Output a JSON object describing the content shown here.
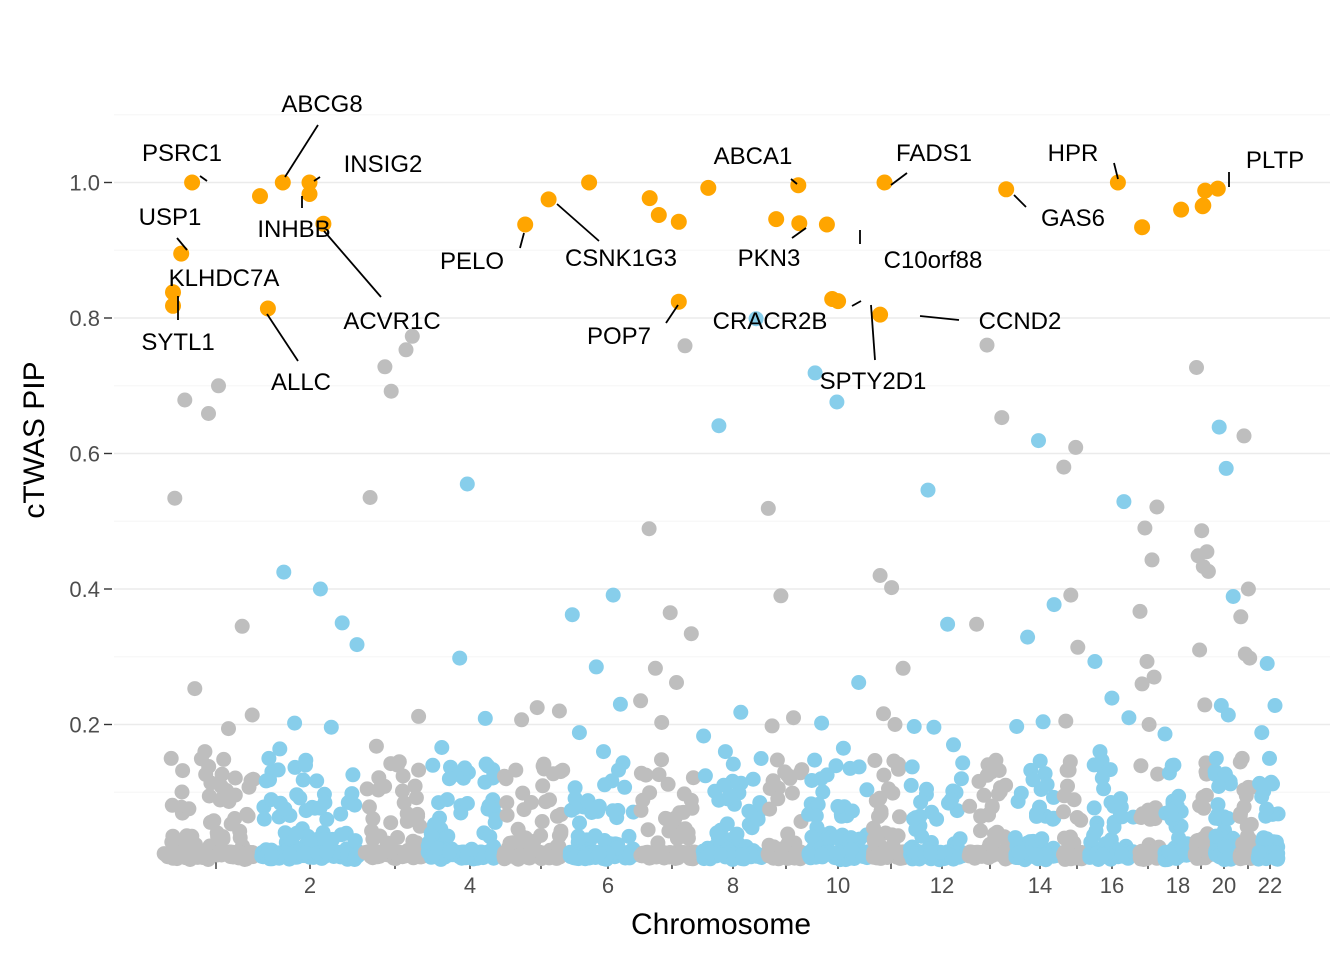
{
  "chart_data": {
    "type": "scatter",
    "title": "",
    "xlabel": "Chromosome",
    "ylabel": "cTWAS PIP",
    "ylim": [
      0,
      1.1
    ],
    "y_ticks": [
      0.2,
      0.4,
      0.6,
      0.8,
      1.0
    ],
    "y_tick_labels": [
      "0.2",
      "0.4",
      "0.6",
      "0.8",
      "1.0"
    ],
    "x_tick_labels": [
      "2",
      "4",
      "6",
      "8",
      "10",
      "12",
      "14",
      "16",
      "18",
      "20",
      "22"
    ],
    "grid": true,
    "legend": "none",
    "colors": {
      "odd_chromosome": "#bebebe",
      "even_chromosome": "#87ceeb",
      "highlighted": "#ffa500",
      "gridline": "#ebebeb",
      "label_line": "#000000"
    },
    "chromosomes": [
      {
        "chr": 1,
        "label": "",
        "lead": [
          0.534,
          0.659,
          0.345,
          0.679,
          0.7,
          0.214,
          0.253,
          0.194,
          0.15,
          0.16
        ]
      },
      {
        "chr": 2,
        "label": "2",
        "lead": [
          0.425,
          0.4,
          0.318,
          0.202,
          0.196,
          0.15,
          0.14,
          0.35,
          0.164
        ]
      },
      {
        "chr": 3,
        "label": "",
        "lead": [
          0.728,
          0.753,
          0.535,
          0.692,
          0.773,
          0.168,
          0.14,
          0.212
        ]
      },
      {
        "chr": 4,
        "label": "4",
        "lead": [
          0.298,
          0.209,
          0.166,
          0.555,
          0.121,
          0.12
        ]
      },
      {
        "chr": 5,
        "label": "",
        "lead": [
          0.225,
          0.22,
          0.207,
          0.14,
          0.12
        ]
      },
      {
        "chr": 6,
        "label": "6",
        "lead": [
          0.391,
          0.362,
          0.285,
          0.23,
          0.188,
          0.16
        ]
      },
      {
        "chr": 7,
        "label": "",
        "lead": [
          0.759,
          0.489,
          0.365,
          0.334,
          0.283,
          0.262,
          0.235,
          0.203
        ]
      },
      {
        "chr": 8,
        "label": "8",
        "lead": [
          0.799,
          0.641,
          0.218,
          0.183,
          0.16
        ]
      },
      {
        "chr": 9,
        "label": "",
        "lead": [
          0.519,
          0.39,
          0.21,
          0.198,
          0.13
        ]
      },
      {
        "chr": 10,
        "label": "10",
        "lead": [
          0.719,
          0.676,
          0.262,
          0.202,
          0.165
        ]
      },
      {
        "chr": 11,
        "label": "",
        "lead": [
          0.42,
          0.402,
          0.283,
          0.216,
          0.2
        ]
      },
      {
        "chr": 12,
        "label": "12",
        "lead": [
          0.546,
          0.348,
          0.197,
          0.196,
          0.17
        ]
      },
      {
        "chr": 13,
        "label": "",
        "lead": [
          0.76,
          0.653,
          0.348,
          0.13
        ]
      },
      {
        "chr": 14,
        "label": "14",
        "lead": [
          0.619,
          0.377,
          0.329,
          0.204,
          0.197
        ]
      },
      {
        "chr": 15,
        "label": "",
        "lead": [
          0.609,
          0.58,
          0.391,
          0.314,
          0.205
        ]
      },
      {
        "chr": 16,
        "label": "16",
        "lead": [
          0.529,
          0.293,
          0.239,
          0.21,
          0.16
        ]
      },
      {
        "chr": 17,
        "label": "",
        "lead": [
          0.521,
          0.49,
          0.443,
          0.367,
          0.293,
          0.27,
          0.26,
          0.2
        ]
      },
      {
        "chr": 18,
        "label": "18",
        "lead": [
          0.186,
          0.14
        ]
      },
      {
        "chr": 19,
        "label": "",
        "lead": [
          0.727,
          0.486,
          0.455,
          0.449,
          0.433,
          0.426,
          0.31,
          0.229
        ]
      },
      {
        "chr": 20,
        "label": "20",
        "lead": [
          0.639,
          0.578,
          0.389,
          0.228,
          0.214,
          0.15
        ]
      },
      {
        "chr": 21,
        "label": "",
        "lead": [
          0.626,
          0.4,
          0.359,
          0.304,
          0.298,
          0.15
        ]
      },
      {
        "chr": 22,
        "label": "22",
        "lead": [
          0.29,
          0.228,
          0.188,
          0.15
        ]
      }
    ],
    "highlighted_points": [
      {
        "chr": 1,
        "pip": 1.0,
        "gene": "PSRC1"
      },
      {
        "chr": 1,
        "pip": 0.895,
        "gene": "USP1"
      },
      {
        "chr": 1,
        "pip": 0.838,
        "gene": "KLHDC7A"
      },
      {
        "chr": 1,
        "pip": 0.818,
        "gene": "SYTL1"
      },
      {
        "chr": 2,
        "pip": 0.98,
        "gene": ""
      },
      {
        "chr": 2,
        "pip": 1.0,
        "gene": "ABCG8"
      },
      {
        "chr": 2,
        "pip": 1.0,
        "gene": "INSIG2"
      },
      {
        "chr": 2,
        "pip": 0.983,
        "gene": "INHBB"
      },
      {
        "chr": 2,
        "pip": 0.939,
        "gene": "ACVR1C"
      },
      {
        "chr": 2,
        "pip": 0.814,
        "gene": "ALLC"
      },
      {
        "chr": 5,
        "pip": 0.938,
        "gene": "PELO"
      },
      {
        "chr": 5,
        "pip": 0.975,
        "gene": "CSNK1G3"
      },
      {
        "chr": 6,
        "pip": 1.0,
        "gene": ""
      },
      {
        "chr": 7,
        "pip": 0.977,
        "gene": ""
      },
      {
        "chr": 7,
        "pip": 0.952,
        "gene": ""
      },
      {
        "chr": 7,
        "pip": 0.942,
        "gene": ""
      },
      {
        "chr": 7,
        "pip": 0.824,
        "gene": "POP7"
      },
      {
        "chr": 8,
        "pip": 0.992,
        "gene": ""
      },
      {
        "chr": 9,
        "pip": 0.946,
        "gene": ""
      },
      {
        "chr": 9,
        "pip": 0.996,
        "gene": "ABCA1"
      },
      {
        "chr": 9,
        "pip": 0.94,
        "gene": "PKN3"
      },
      {
        "chr": 10,
        "pip": 0.938,
        "gene": "C10orf88"
      },
      {
        "chr": 10,
        "pip": 0.828,
        "gene": "CRACR2B"
      },
      {
        "chr": 10,
        "pip": 0.825,
        "gene": "SPTY2D1"
      },
      {
        "chr": 11,
        "pip": 1.0,
        "gene": "FADS1"
      },
      {
        "chr": 11,
        "pip": 0.805,
        "gene": "CCND2"
      },
      {
        "chr": 13,
        "pip": 0.99,
        "gene": "GAS6"
      },
      {
        "chr": 16,
        "pip": 1.0,
        "gene": "HPR"
      },
      {
        "chr": 17,
        "pip": 0.934,
        "gene": ""
      },
      {
        "chr": 18,
        "pip": 0.96,
        "gene": ""
      },
      {
        "chr": 19,
        "pip": 0.988,
        "gene": ""
      },
      {
        "chr": 19,
        "pip": 0.966,
        "gene": ""
      },
      {
        "chr": 19,
        "pip": 0.965,
        "gene": ""
      },
      {
        "chr": 20,
        "pip": 0.991,
        "gene": "PLTP"
      }
    ]
  }
}
